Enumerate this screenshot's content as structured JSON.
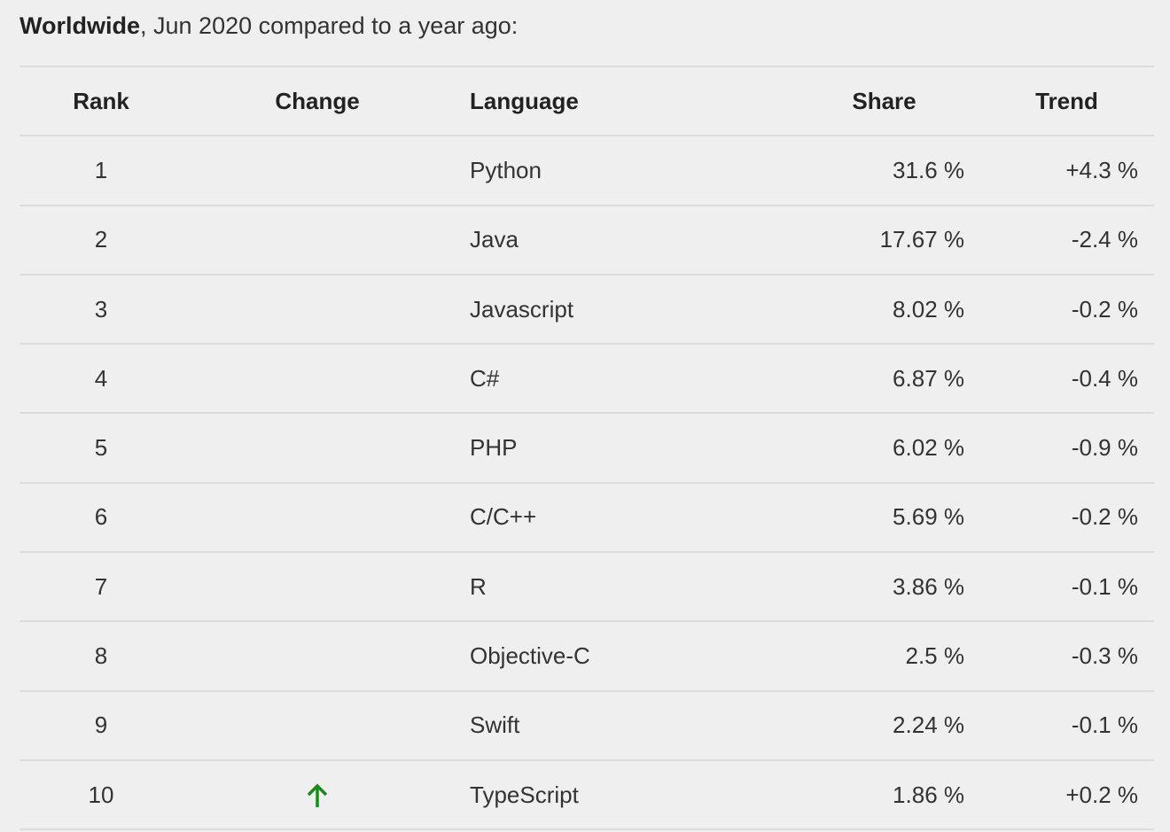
{
  "header": {
    "bold": "Worldwide",
    "rest": ", Jun 2020 compared to a year ago:"
  },
  "table": {
    "columns": [
      "Rank",
      "Change",
      "Language",
      "Share",
      "Trend"
    ],
    "rows": [
      [
        "1",
        "Python",
        "31.6 %",
        "+4.3 %"
      ],
      [
        "2",
        "Java",
        "17.67 %",
        "-2.4 %"
      ],
      [
        "3",
        "Javascript",
        "8.02 %",
        "-0.2 %"
      ],
      [
        "4",
        "C#",
        "6.87 %",
        "-0.4 %"
      ],
      [
        "5",
        "PHP",
        "6.02 %",
        "-0.9 %"
      ],
      [
        "6",
        "C/C++",
        "5.69 %",
        "-0.2 %"
      ],
      [
        "7",
        "R",
        "3.86 %",
        "-0.1 %"
      ],
      [
        "8",
        "Objective-C",
        "2.5 %",
        "-0.3 %"
      ],
      [
        "9",
        "Swift",
        "2.24 %",
        "-0.1 %"
      ],
      [
        "10",
        "TypeScript",
        "1.86 %",
        "+0.2 %"
      ]
    ]
  }
}
